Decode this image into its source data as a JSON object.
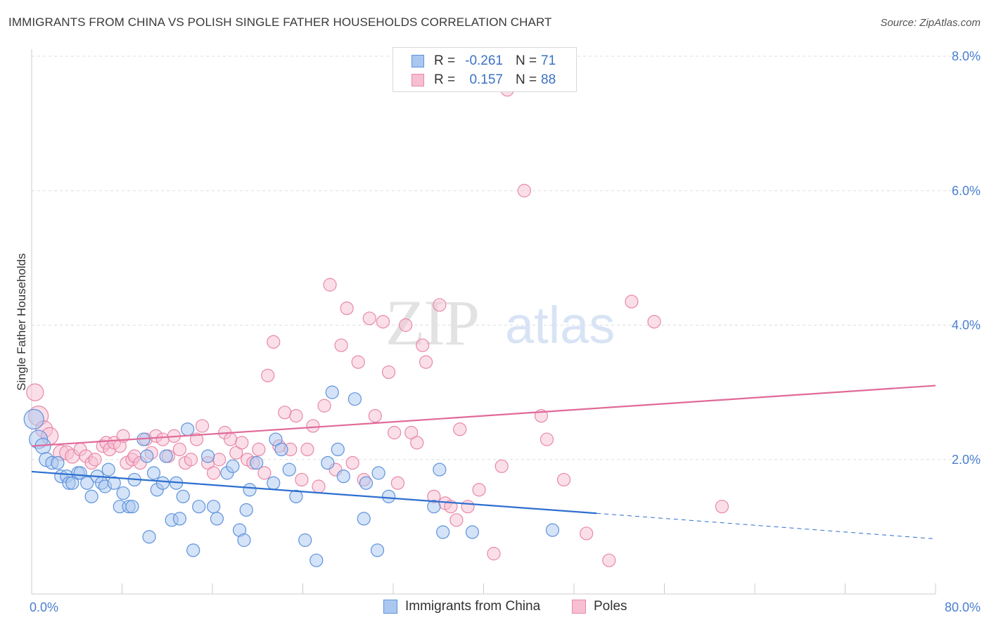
{
  "title": "IMMIGRANTS FROM CHINA VS POLISH SINGLE FATHER HOUSEHOLDS CORRELATION CHART",
  "source": "Source: ZipAtlas.com",
  "watermark": {
    "zip": "ZIP",
    "atlas": "atlas"
  },
  "legend": {
    "rows": [
      {
        "r_label": "R =",
        "r_value": "-0.261",
        "n_label": "N =",
        "n_value": "71"
      },
      {
        "r_label": "R =",
        "r_value": "0.157",
        "n_label": "N =",
        "n_value": "88"
      }
    ]
  },
  "bottom_legend": {
    "series1": "Immigrants from China",
    "series2": "Poles"
  },
  "chart_data": {
    "type": "scatter",
    "title": "IMMIGRANTS FROM CHINA VS POLISH SINGLE FATHER HOUSEHOLDS CORRELATION CHART",
    "xlabel": "",
    "ylabel": "Single Father Households",
    "xlim": [
      0,
      80
    ],
    "ylim": [
      0,
      8
    ],
    "x_tick_labels": [
      "0.0%",
      "80.0%"
    ],
    "y_ticks": [
      {
        "value": 2,
        "label": "2.0%"
      },
      {
        "value": 4,
        "label": "4.0%"
      },
      {
        "value": 6,
        "label": "6.0%"
      },
      {
        "value": 8,
        "label": "8.0%"
      }
    ],
    "grid": true,
    "colors": {
      "china_fill": "#aac7f0",
      "china_stroke": "#5f93dc",
      "china_line": "#2e6fcf",
      "poles_fill": "#f7bfd1",
      "poles_stroke": "#e888a8",
      "poles_line": "#e06a98",
      "tick": "#4a7fd0",
      "grid": "#dddddd"
    },
    "series": [
      {
        "name": "Immigrants from China",
        "r": -0.261,
        "n": 71,
        "trend": {
          "x0": 0,
          "y0": 1.82,
          "x1": 50,
          "y1": 1.2,
          "dash_x1": 80,
          "dash_y1": 0.82
        },
        "points": [
          [
            0.2,
            2.6,
            14
          ],
          [
            0.6,
            2.3,
            13
          ],
          [
            1.0,
            2.2,
            11
          ],
          [
            1.3,
            2.0,
            10
          ],
          [
            1.8,
            1.95,
            9
          ],
          [
            2.3,
            1.95,
            9
          ],
          [
            2.6,
            1.75,
            9
          ],
          [
            3.1,
            1.75,
            9
          ],
          [
            3.3,
            1.65,
            9
          ],
          [
            3.6,
            1.65,
            9
          ],
          [
            4.1,
            1.8,
            9
          ],
          [
            4.3,
            1.8,
            9
          ],
          [
            4.9,
            1.65,
            9
          ],
          [
            5.3,
            1.45,
            9
          ],
          [
            5.8,
            1.75,
            9
          ],
          [
            6.2,
            1.65,
            9
          ],
          [
            6.5,
            1.6,
            9
          ],
          [
            6.8,
            1.85,
            9
          ],
          [
            7.3,
            1.65,
            9
          ],
          [
            7.8,
            1.3,
            9
          ],
          [
            8.1,
            1.5,
            9
          ],
          [
            8.6,
            1.3,
            9
          ],
          [
            8.9,
            1.3,
            9
          ],
          [
            9.1,
            1.7,
            9
          ],
          [
            9.9,
            2.3,
            9
          ],
          [
            10.2,
            2.05,
            9
          ],
          [
            10.4,
            0.85,
            9
          ],
          [
            10.8,
            1.8,
            9
          ],
          [
            11.1,
            1.55,
            9
          ],
          [
            11.6,
            1.65,
            9
          ],
          [
            11.9,
            2.05,
            9
          ],
          [
            12.4,
            1.1,
            9
          ],
          [
            12.8,
            1.65,
            9
          ],
          [
            13.1,
            1.12,
            9
          ],
          [
            13.4,
            1.45,
            9
          ],
          [
            13.8,
            2.45,
            9
          ],
          [
            14.3,
            0.65,
            9
          ],
          [
            14.8,
            1.3,
            9
          ],
          [
            15.6,
            2.05,
            9
          ],
          [
            16.1,
            1.3,
            9
          ],
          [
            16.4,
            1.12,
            9
          ],
          [
            17.3,
            1.8,
            9
          ],
          [
            17.8,
            1.9,
            9
          ],
          [
            18.4,
            0.95,
            9
          ],
          [
            18.8,
            0.8,
            9
          ],
          [
            19.0,
            1.25,
            9
          ],
          [
            19.3,
            1.55,
            9
          ],
          [
            19.9,
            1.95,
            9
          ],
          [
            21.4,
            1.65,
            9
          ],
          [
            21.6,
            2.3,
            9
          ],
          [
            22.1,
            2.15,
            9
          ],
          [
            22.8,
            1.85,
            9
          ],
          [
            23.4,
            1.45,
            9
          ],
          [
            24.2,
            0.8,
            9
          ],
          [
            25.2,
            0.5,
            9
          ],
          [
            26.2,
            1.95,
            9
          ],
          [
            26.6,
            3.0,
            9
          ],
          [
            27.1,
            2.15,
            9
          ],
          [
            27.6,
            1.75,
            9
          ],
          [
            28.6,
            2.9,
            9
          ],
          [
            29.4,
            1.12,
            9
          ],
          [
            29.6,
            1.65,
            9
          ],
          [
            30.6,
            0.65,
            9
          ],
          [
            30.7,
            1.8,
            9
          ],
          [
            31.6,
            1.45,
            9
          ],
          [
            35.6,
            1.3,
            9
          ],
          [
            36.1,
            1.85,
            9
          ],
          [
            36.4,
            0.92,
            9
          ],
          [
            39.0,
            0.92,
            9
          ],
          [
            46.1,
            0.95,
            9
          ]
        ]
      },
      {
        "name": "Poles",
        "r": 0.157,
        "n": 88,
        "trend": {
          "x0": 0,
          "y0": 2.2,
          "x1": 80,
          "y1": 3.1
        },
        "points": [
          [
            0.3,
            3.0,
            12
          ],
          [
            0.6,
            2.65,
            14
          ],
          [
            1.1,
            2.45,
            12
          ],
          [
            1.6,
            2.35,
            12
          ],
          [
            2.6,
            2.1,
            11
          ],
          [
            3.1,
            2.1,
            10
          ],
          [
            3.6,
            2.05,
            10
          ],
          [
            4.3,
            2.15,
            9
          ],
          [
            4.8,
            2.05,
            9
          ],
          [
            5.3,
            1.95,
            9
          ],
          [
            5.6,
            2.0,
            9
          ],
          [
            6.3,
            2.2,
            9
          ],
          [
            6.6,
            2.25,
            9
          ],
          [
            6.9,
            2.15,
            9
          ],
          [
            7.3,
            2.25,
            9
          ],
          [
            7.8,
            2.2,
            9
          ],
          [
            8.1,
            2.35,
            9
          ],
          [
            8.4,
            1.95,
            9
          ],
          [
            8.9,
            2.0,
            9
          ],
          [
            9.1,
            2.05,
            9
          ],
          [
            9.6,
            1.95,
            9
          ],
          [
            10.1,
            2.3,
            9
          ],
          [
            10.6,
            2.1,
            9
          ],
          [
            11.0,
            2.35,
            9
          ],
          [
            11.6,
            2.3,
            9
          ],
          [
            12.1,
            2.05,
            9
          ],
          [
            12.6,
            2.35,
            9
          ],
          [
            13.1,
            2.15,
            9
          ],
          [
            13.6,
            1.95,
            9
          ],
          [
            14.1,
            2.0,
            9
          ],
          [
            14.6,
            2.3,
            9
          ],
          [
            15.1,
            2.5,
            9
          ],
          [
            15.6,
            1.95,
            9
          ],
          [
            16.1,
            1.8,
            9
          ],
          [
            16.6,
            2.0,
            9
          ],
          [
            17.1,
            2.4,
            9
          ],
          [
            17.6,
            2.3,
            9
          ],
          [
            18.1,
            2.1,
            9
          ],
          [
            18.6,
            2.25,
            9
          ],
          [
            19.1,
            2.0,
            9
          ],
          [
            19.6,
            1.95,
            9
          ],
          [
            20.1,
            2.15,
            9
          ],
          [
            20.6,
            1.8,
            9
          ],
          [
            20.9,
            3.25,
            9
          ],
          [
            21.4,
            3.75,
            9
          ],
          [
            21.9,
            2.2,
            9
          ],
          [
            22.4,
            2.7,
            9
          ],
          [
            22.9,
            2.15,
            9
          ],
          [
            23.4,
            2.65,
            9
          ],
          [
            23.9,
            1.7,
            9
          ],
          [
            24.4,
            2.15,
            9
          ],
          [
            24.9,
            2.5,
            9
          ],
          [
            25.4,
            1.6,
            9
          ],
          [
            25.9,
            2.8,
            9
          ],
          [
            26.4,
            4.6,
            9
          ],
          [
            26.9,
            1.85,
            9
          ],
          [
            27.4,
            3.7,
            9
          ],
          [
            27.9,
            4.25,
            9
          ],
          [
            28.4,
            1.95,
            9
          ],
          [
            28.9,
            3.45,
            9
          ],
          [
            29.4,
            1.7,
            9
          ],
          [
            29.9,
            4.1,
            9
          ],
          [
            30.4,
            2.65,
            9
          ],
          [
            31.1,
            4.05,
            9
          ],
          [
            31.6,
            3.3,
            9
          ],
          [
            32.1,
            2.4,
            9
          ],
          [
            32.4,
            1.65,
            9
          ],
          [
            33.1,
            4.0,
            9
          ],
          [
            33.6,
            2.4,
            9
          ],
          [
            34.1,
            2.25,
            9
          ],
          [
            34.6,
            3.7,
            9
          ],
          [
            34.9,
            3.45,
            9
          ],
          [
            35.6,
            1.45,
            9
          ],
          [
            36.1,
            4.3,
            9
          ],
          [
            36.6,
            1.35,
            9
          ],
          [
            37.1,
            1.3,
            9
          ],
          [
            37.6,
            1.1,
            9
          ],
          [
            37.9,
            2.45,
            9
          ],
          [
            38.6,
            1.3,
            9
          ],
          [
            39.6,
            1.55,
            9
          ],
          [
            40.9,
            0.6,
            9
          ],
          [
            41.6,
            1.9,
            9
          ],
          [
            42.1,
            7.5,
            9
          ],
          [
            43.6,
            6.0,
            9
          ],
          [
            45.1,
            2.65,
            9
          ],
          [
            45.6,
            2.3,
            9
          ],
          [
            47.1,
            1.7,
            9
          ],
          [
            49.1,
            0.9,
            9
          ],
          [
            51.1,
            0.5,
            9
          ],
          [
            53.1,
            4.35,
            9
          ],
          [
            55.1,
            4.05,
            9
          ],
          [
            61.1,
            1.3,
            9
          ]
        ]
      }
    ]
  }
}
